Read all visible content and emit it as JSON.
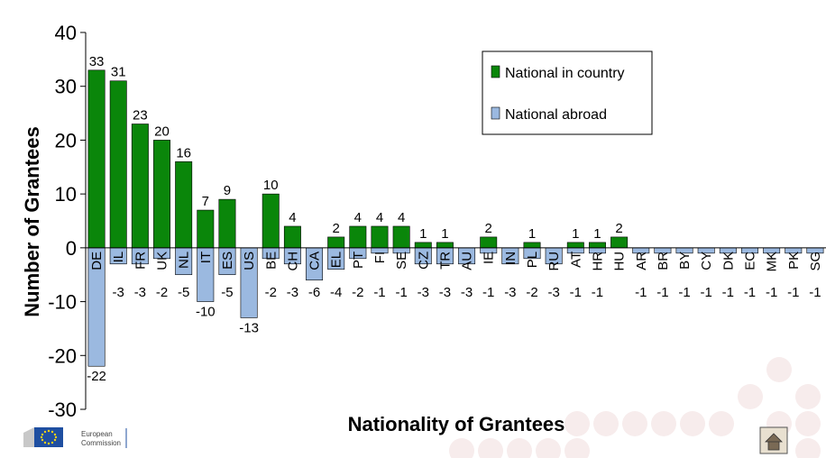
{
  "chart_data": {
    "type": "bar",
    "xlabel": "Nationality of Grantees",
    "ylabel": "Number of Grantees",
    "ylim": [
      -30,
      40
    ],
    "yticks": [
      40,
      30,
      20,
      10,
      0,
      -10,
      -20,
      -30
    ],
    "grid": false,
    "legend_position": "top-right",
    "categories": [
      "DE",
      "IL",
      "FR",
      "UK",
      "NL",
      "IT",
      "ES",
      "US",
      "BE",
      "CH",
      "CA",
      "EL",
      "PT",
      "FI",
      "SE",
      "CZ",
      "TR",
      "AU",
      "IE",
      "IN",
      "PL",
      "RU",
      "AT",
      "HR",
      "HU",
      "AR",
      "BR",
      "BY",
      "CY",
      "DK",
      "EC",
      "MK",
      "PK",
      "SG"
    ],
    "series": [
      {
        "name": "National in country",
        "color": "#0a860a",
        "values": [
          33,
          31,
          23,
          20,
          16,
          7,
          9,
          null,
          10,
          4,
          null,
          2,
          4,
          4,
          4,
          1,
          1,
          null,
          2,
          null,
          1,
          null,
          1,
          1,
          2,
          null,
          null,
          null,
          null,
          null,
          null,
          null,
          null,
          null
        ]
      },
      {
        "name": "National abroad",
        "color": "#9bb9e0",
        "values": [
          -22,
          -3,
          -3,
          -2,
          -5,
          -10,
          -5,
          -13,
          -2,
          -3,
          -6,
          -4,
          -2,
          -1,
          -1,
          -3,
          -3,
          -3,
          -1,
          -3,
          -2,
          -3,
          -1,
          -1,
          null,
          -1,
          -1,
          -1,
          -1,
          -1,
          -1,
          -1,
          -1,
          -1
        ]
      }
    ]
  },
  "footer": {
    "logo_line1": "European",
    "logo_line2": "Commission",
    "home_icon": "home-icon"
  }
}
